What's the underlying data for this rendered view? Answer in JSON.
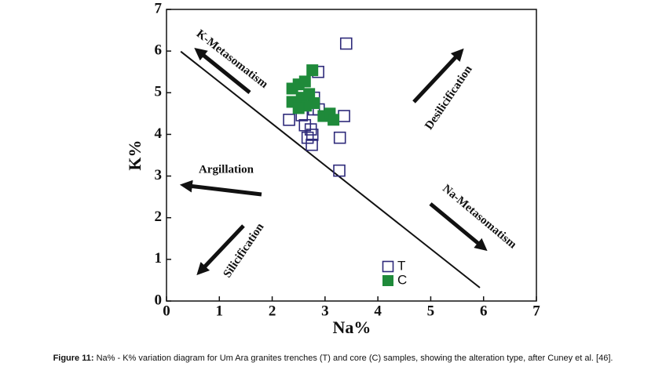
{
  "chart_data": {
    "type": "scatter",
    "xlabel": "Na%",
    "ylabel": "K%",
    "xlim": [
      0,
      7
    ],
    "ylim": [
      0,
      7
    ],
    "xticks": [
      0,
      1,
      2,
      3,
      4,
      5,
      6,
      7
    ],
    "yticks": [
      0,
      1,
      2,
      3,
      4,
      5,
      6,
      7
    ],
    "series": [
      {
        "name": "T",
        "color": "#2e2a7a",
        "marker": "open-square",
        "x": [
          3.4,
          2.87,
          2.79,
          2.32,
          2.56,
          2.62,
          2.79,
          2.88,
          2.73,
          2.67,
          2.76,
          2.75,
          3.36,
          3.28,
          3.27
        ],
        "values": [
          6.18,
          5.5,
          4.88,
          4.35,
          4.46,
          4.22,
          4.6,
          4.6,
          4.12,
          3.92,
          3.99,
          3.75,
          4.44,
          3.92,
          3.13
        ]
      },
      {
        "name": "C",
        "color": "#1f8a3a",
        "marker": "filled-square",
        "x": [
          2.38,
          2.5,
          2.62,
          2.76,
          2.38,
          2.56,
          2.7,
          2.79,
          2.97,
          3.09,
          3.16,
          2.64,
          2.5
        ],
        "values": [
          5.1,
          5.2,
          5.27,
          5.54,
          4.78,
          4.88,
          4.97,
          4.75,
          4.44,
          4.5,
          4.35,
          4.69,
          4.63
        ]
      }
    ],
    "boundary": {
      "x": [
        0.27,
        5.93
      ],
      "values": [
        5.99,
        0.32
      ]
    },
    "annotations": [
      "K-Metasomatism",
      "Desilicification",
      "Argillation",
      "Na-Metasomatism",
      "Silicification"
    ],
    "caption": {
      "label": "Figure 11:",
      "text": " Na% - K% variation diagram for Um Ara granites trenches (T) and core (C) samples, showing the alteration type, after Cuney et al. [46]."
    }
  }
}
